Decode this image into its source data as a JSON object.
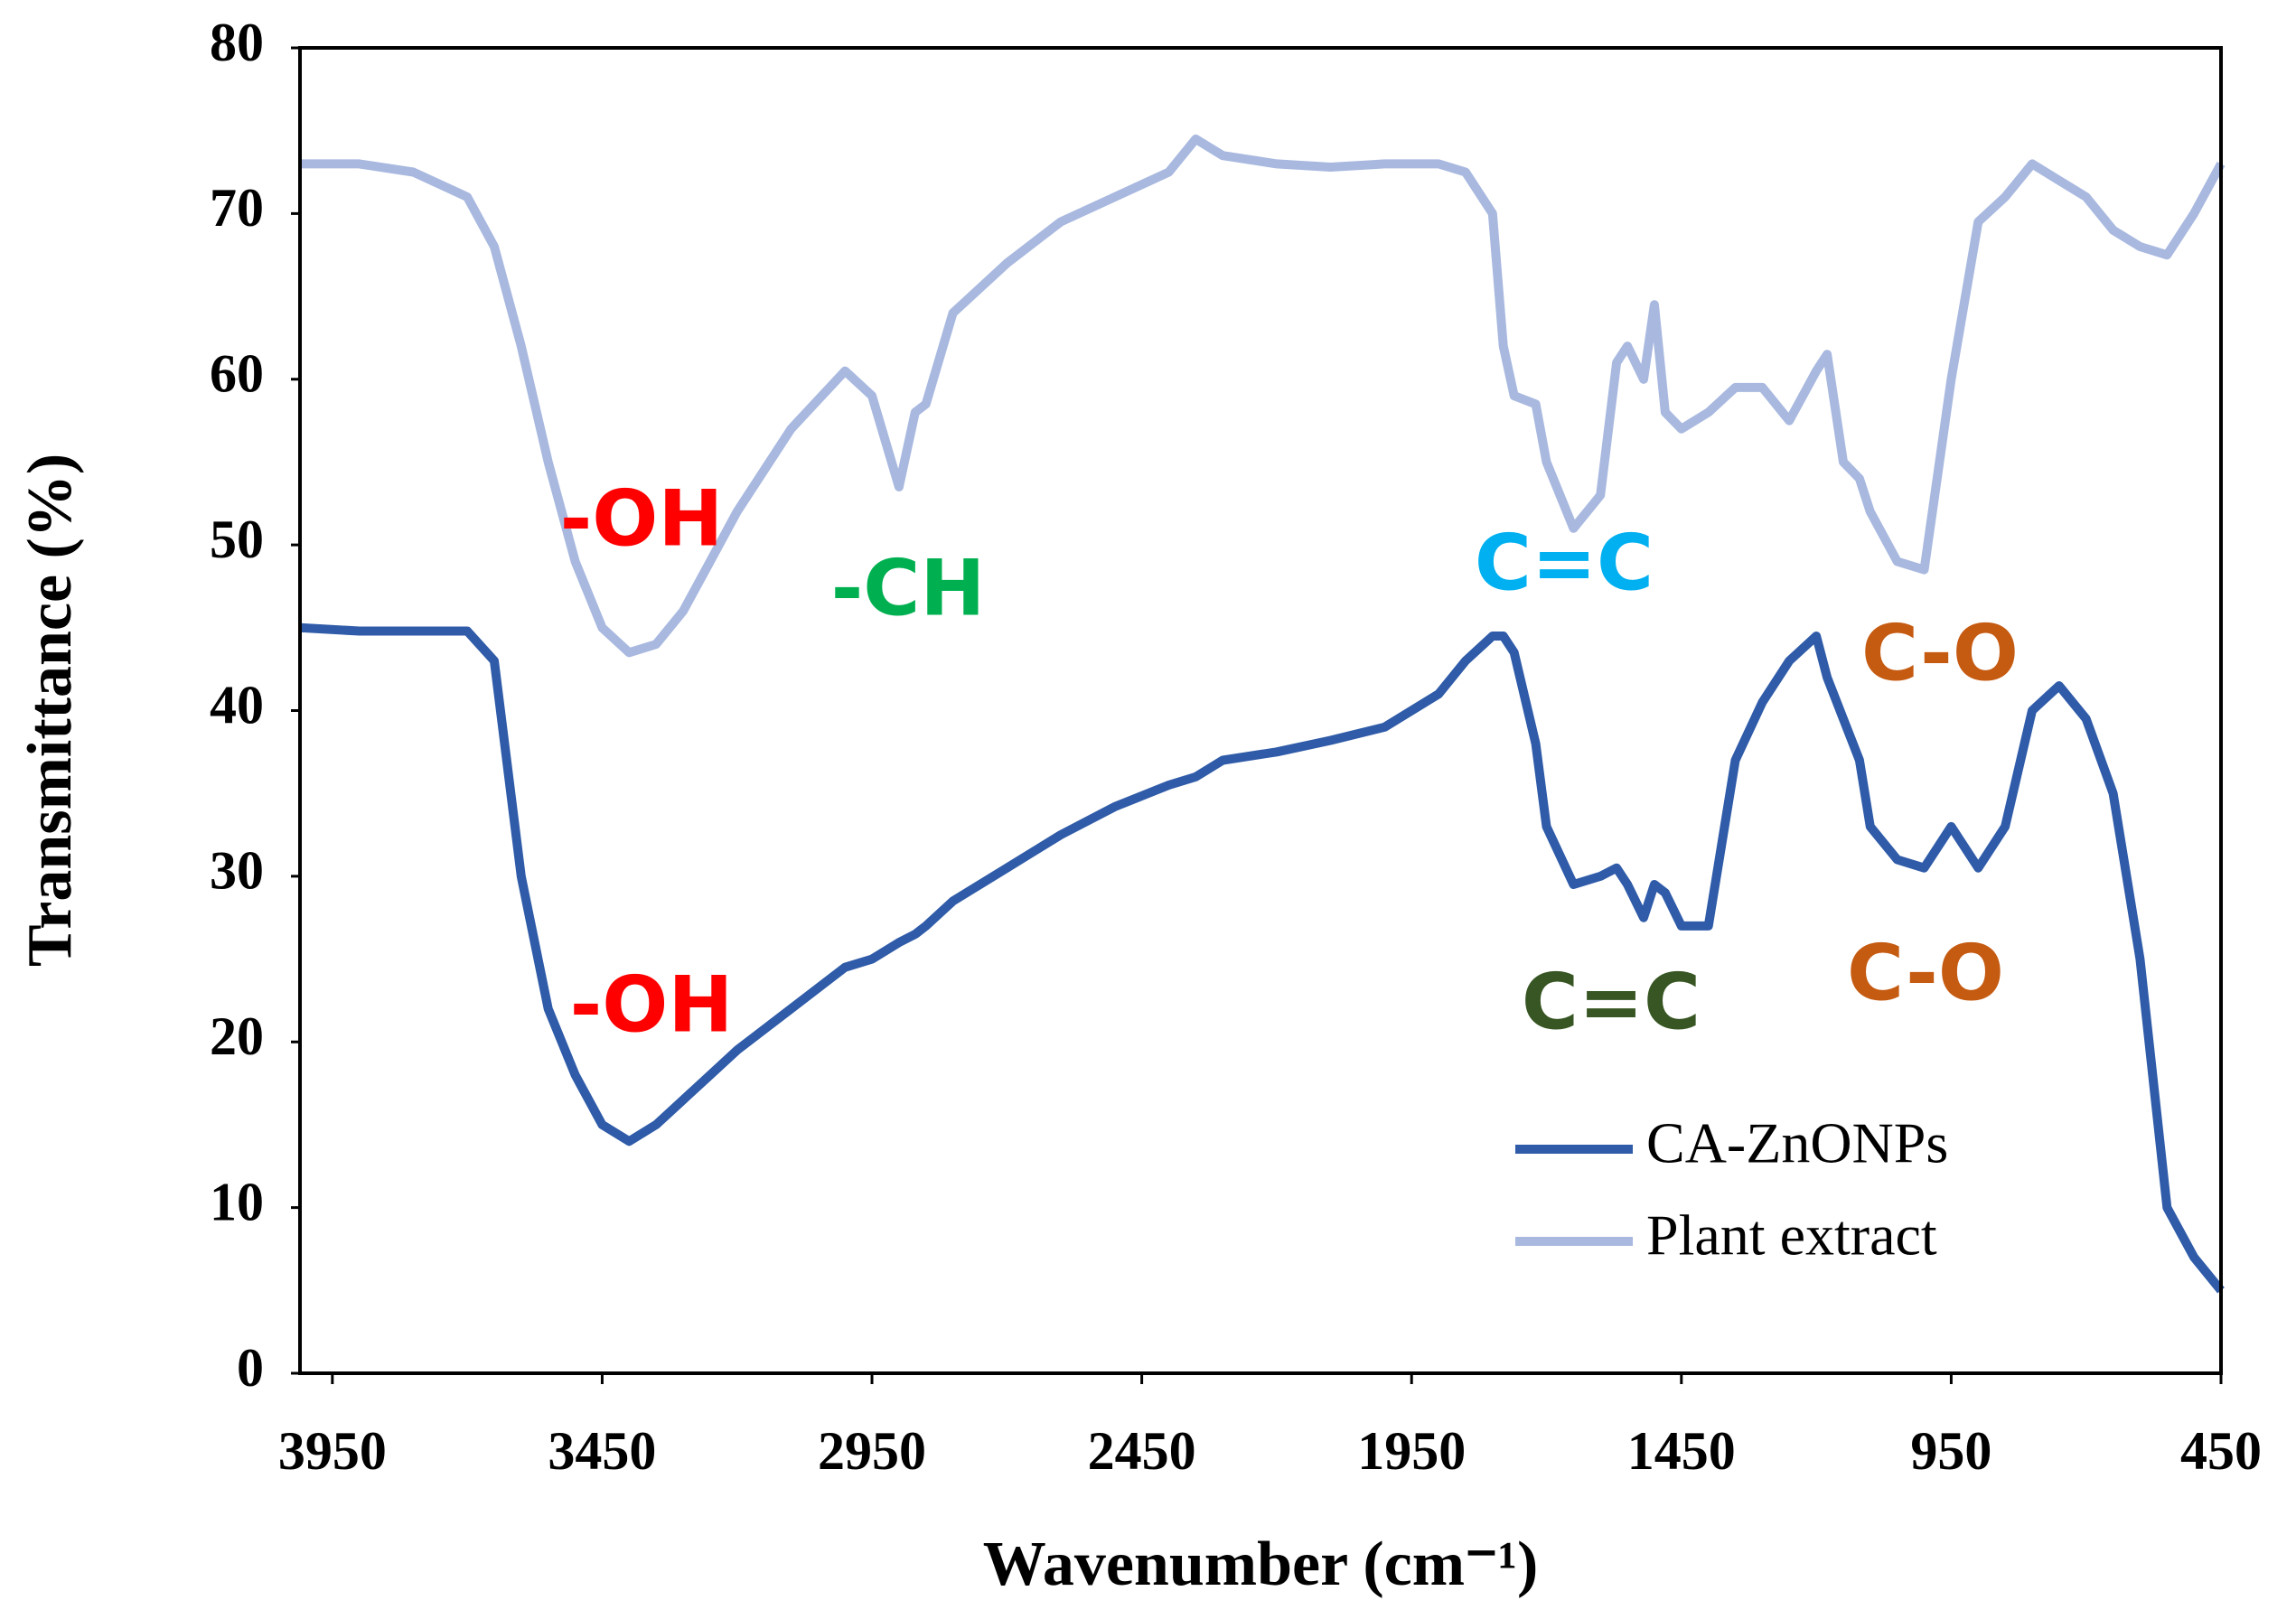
{
  "chart_data": {
    "type": "line",
    "x_label": "Wavenumber (cm⁻¹)",
    "y_label": "Transmittance (%)",
    "xlim": [
      4010,
      450
    ],
    "ylim": [
      0,
      80
    ],
    "xticks": [
      3950,
      3450,
      2950,
      2450,
      1950,
      1450,
      950,
      450
    ],
    "yticks": [
      0,
      10,
      20,
      30,
      40,
      50,
      60,
      70,
      80
    ],
    "grid": false,
    "legend": "lower right",
    "x": [
      4010,
      3900,
      3800,
      3700,
      3650,
      3600,
      3550,
      3500,
      3450,
      3400,
      3350,
      3300,
      3250,
      3200,
      3100,
      3000,
      2950,
      2900,
      2870,
      2850,
      2800,
      2700,
      2600,
      2500,
      2400,
      2350,
      2300,
      2200,
      2100,
      2000,
      1900,
      1850,
      1800,
      1780,
      1760,
      1720,
      1700,
      1650,
      1600,
      1570,
      1550,
      1520,
      1500,
      1480,
      1450,
      1400,
      1350,
      1300,
      1250,
      1200,
      1180,
      1150,
      1120,
      1100,
      1050,
      1000,
      950,
      900,
      850,
      800,
      750,
      700,
      650,
      600,
      550,
      500,
      450
    ],
    "series": [
      {
        "name": "CA-ZnONPs",
        "color": "#2f5ba8",
        "values": [
          45,
          44.8,
          44.8,
          44.8,
          43,
          30,
          22,
          18,
          15,
          14,
          15,
          16.5,
          18,
          19.5,
          22,
          24.5,
          25,
          26,
          26.5,
          27,
          28.5,
          30.5,
          32.5,
          34.2,
          35.5,
          36,
          37,
          37.5,
          38.2,
          39,
          41,
          43,
          44.5,
          44.5,
          43.5,
          38,
          33,
          29.5,
          30,
          30.5,
          29.5,
          27.5,
          29.5,
          29,
          27,
          27,
          37,
          40.5,
          43,
          44.5,
          42,
          39.5,
          37,
          33,
          31,
          30.5,
          33,
          30.5,
          33,
          40,
          41.5,
          39.5,
          35,
          25,
          10,
          7,
          5
        ]
      },
      {
        "name": "Plant extract",
        "color": "#a8b8df",
        "values": [
          73,
          73,
          72.5,
          71,
          68,
          62,
          55,
          49,
          45,
          43.5,
          44,
          46,
          49,
          52,
          57,
          60.5,
          59,
          53.5,
          58,
          58.5,
          64,
          67,
          69.5,
          71,
          72.5,
          74.5,
          73.5,
          73,
          72.8,
          73,
          73,
          72.5,
          70,
          62,
          59,
          58.5,
          55,
          51,
          53,
          61,
          62,
          60,
          64.5,
          58,
          57,
          58,
          59.5,
          59.5,
          57.5,
          60.5,
          61.5,
          55,
          54,
          52,
          49,
          48.5,
          60,
          69.5,
          71,
          73,
          72,
          71,
          69,
          68,
          67.5,
          70,
          73
        ]
      }
    ],
    "annotations": [
      {
        "text": "-OH",
        "color": "#ff0000"
      },
      {
        "text": "-CH",
        "color": "#00b050"
      },
      {
        "text": "C=C",
        "color": "#00b0f0"
      },
      {
        "text": "C-O",
        "color": "#c55a11"
      },
      {
        "text": "-OH",
        "color": "#ff0000"
      },
      {
        "text": "C=C",
        "color": "#375623"
      },
      {
        "text": "C-O",
        "color": "#c55a11"
      }
    ]
  }
}
